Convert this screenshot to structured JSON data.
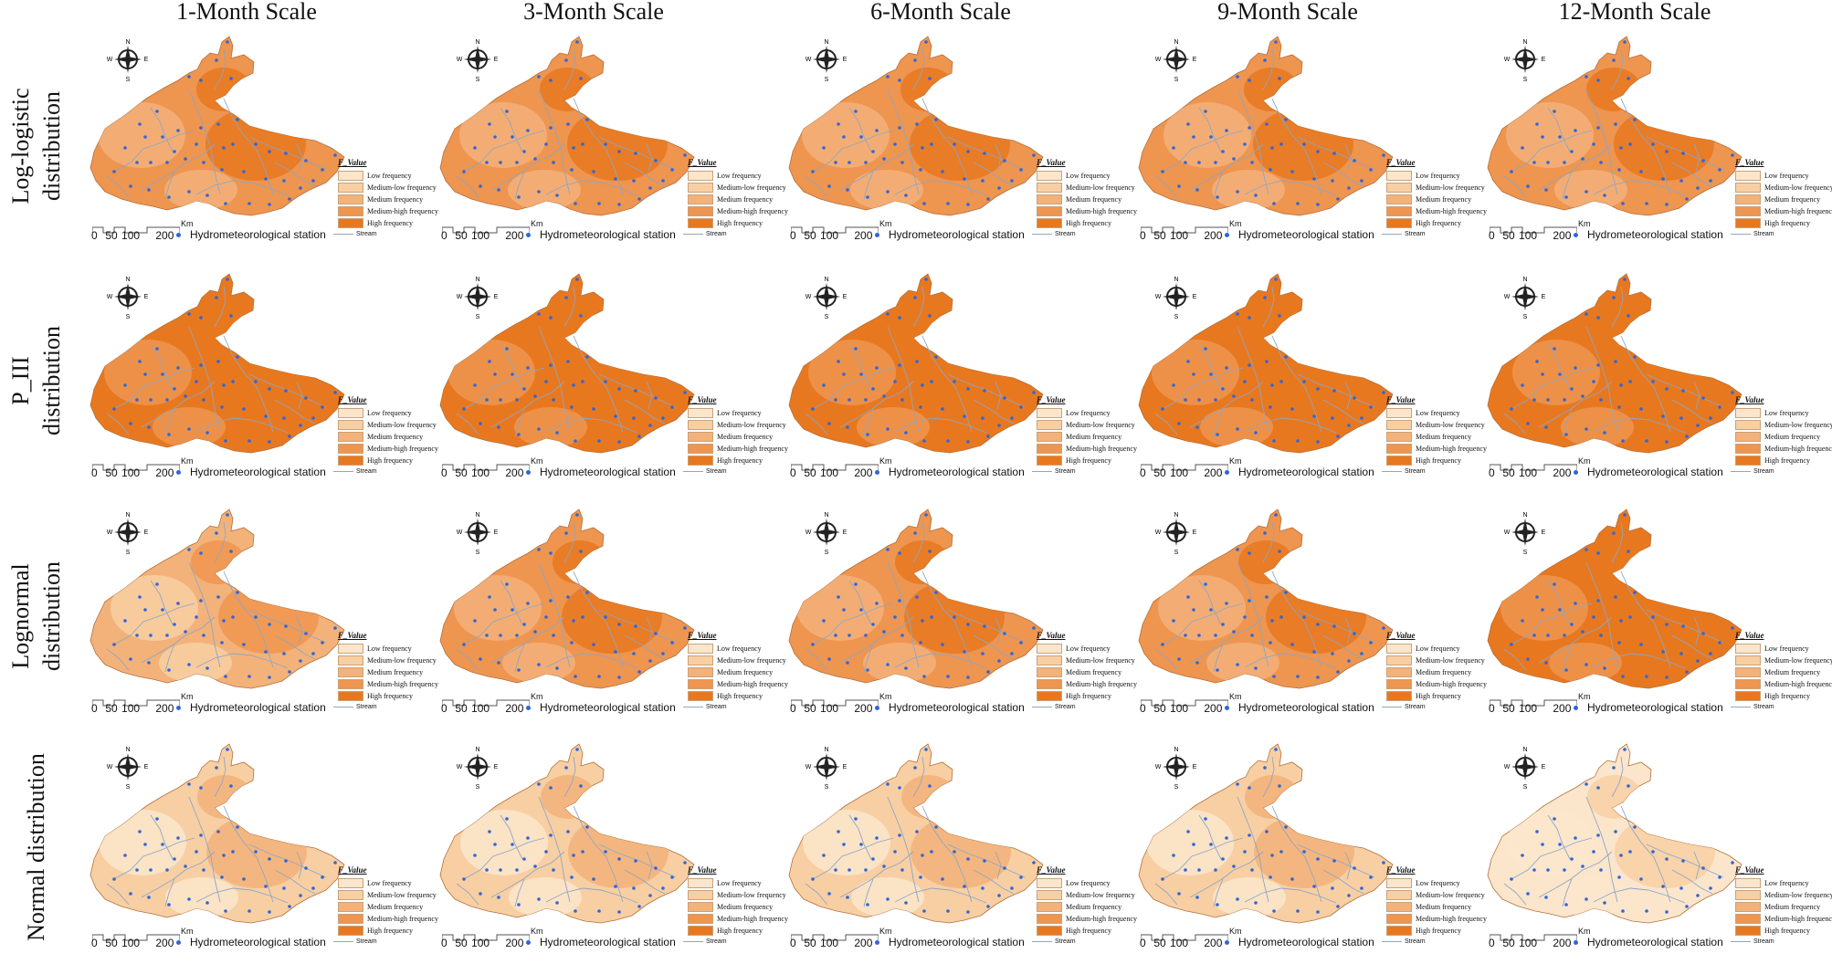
{
  "columns": [
    "1-Month Scale",
    "3-Month Scale",
    "6-Month Scale",
    "9-Month Scale",
    "12-Month Scale"
  ],
  "rows": [
    {
      "line1": "Log-logistic",
      "line2": "distribution"
    },
    {
      "line1": "P_III",
      "line2": "distribution"
    },
    {
      "line1": "Lognormal",
      "line2": "distribution"
    },
    {
      "line1": "Normal distribution",
      "line2": ""
    }
  ],
  "compass": {
    "n": "N",
    "s": "S",
    "e": "E",
    "w": "W"
  },
  "legend": {
    "title": "F_Value",
    "items": [
      {
        "label": "Low frequency",
        "color": "#fbe6cc"
      },
      {
        "label": "Medium-low frequency",
        "color": "#f8cfa3"
      },
      {
        "label": "Medium frequency",
        "color": "#f3b27a"
      },
      {
        "label": "Medium-high frequency",
        "color": "#ee9550"
      },
      {
        "label": "High frequency",
        "color": "#e8781f"
      }
    ]
  },
  "scale": {
    "numbers": "0  50 100    200",
    "unit": "Km"
  },
  "station_label": "Hydrometeorological station",
  "stream_label": "Stream",
  "colors": {
    "station": "#2f66d8",
    "stream": "#8ea6c4",
    "boundary": "#b4703a"
  },
  "panels": [
    [
      "medium-high",
      "medium-high",
      "medium-high",
      "medium-high",
      "medium-high"
    ],
    [
      "high",
      "high",
      "high",
      "high",
      "high"
    ],
    [
      "medium",
      "medium-high",
      "medium-high",
      "medium-high",
      "high"
    ],
    [
      "medium-low",
      "medium-low",
      "medium-low",
      "medium-low",
      "low"
    ]
  ]
}
